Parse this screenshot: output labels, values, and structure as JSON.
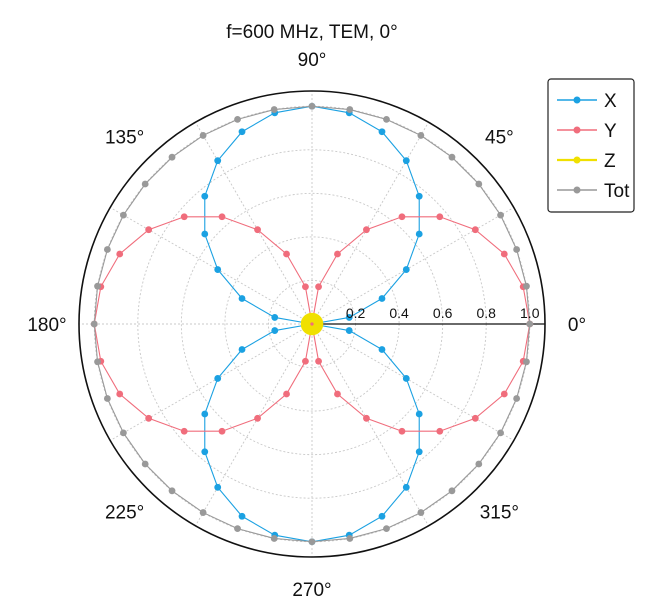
{
  "chart_data": {
    "type": "polar-line",
    "title": "f=600 MHz, TEM, 0°",
    "angle_ticks": [
      {
        "deg": 0,
        "label": "0°"
      },
      {
        "deg": 45,
        "label": "45°"
      },
      {
        "deg": 90,
        "label": "90°"
      },
      {
        "deg": 135,
        "label": "135°"
      },
      {
        "deg": 180,
        "label": "180°"
      },
      {
        "deg": 225,
        "label": "225°"
      },
      {
        "deg": 270,
        "label": "270°"
      },
      {
        "deg": 315,
        "label": "315°"
      }
    ],
    "radial_ticks": [
      {
        "value": 0.2,
        "label": "0.2"
      },
      {
        "value": 0.4,
        "label": "0.4"
      },
      {
        "value": 0.6,
        "label": "0.6"
      },
      {
        "value": 0.8,
        "label": "0.8"
      },
      {
        "value": 1.0,
        "label": "1.0"
      }
    ],
    "r_max": 1.07,
    "angle_step_deg": 10,
    "legend_position": "top-right",
    "series": [
      {
        "name": "X",
        "color": "#1ba1e2",
        "pattern": "abs_sin",
        "amplitude": 1.0,
        "offset_deg": 0
      },
      {
        "name": "Y",
        "color": "#f06d7c",
        "pattern": "abs_cos",
        "amplitude": 1.0,
        "offset_deg": 0
      },
      {
        "name": "Z",
        "color": "#f0e000",
        "pattern": "constant",
        "amplitude": 0.03,
        "offset_deg": 0
      },
      {
        "name": "Tot",
        "color": "#999999",
        "pattern": "constant",
        "amplitude": 1.0,
        "offset_deg": 0
      }
    ]
  }
}
